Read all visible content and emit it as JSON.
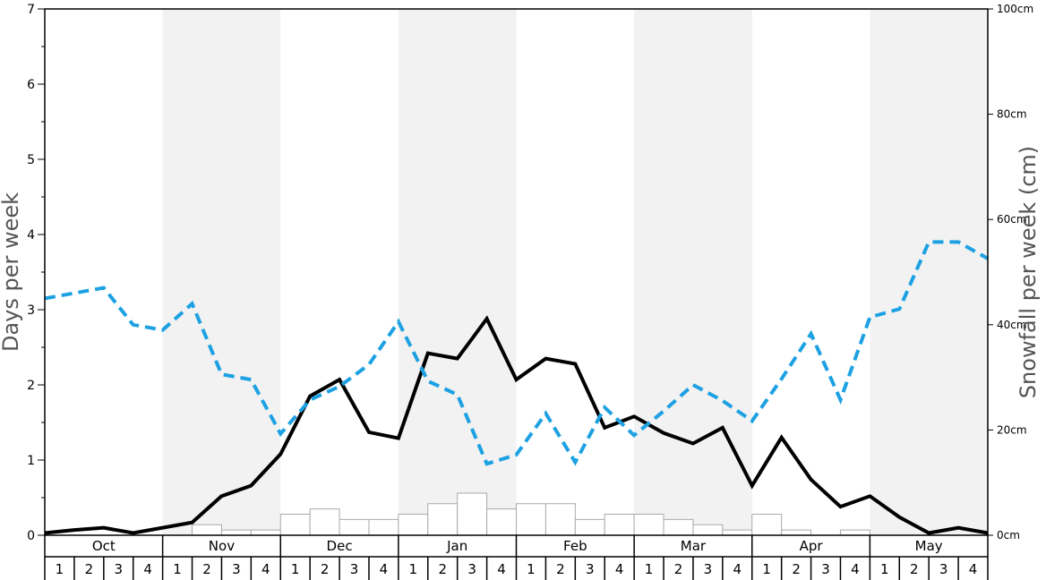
{
  "chart_data": {
    "type": "bar+line",
    "left_axis": {
      "label": "Days per week",
      "ylim": [
        0,
        7
      ],
      "ticks": [
        "0",
        "1",
        "2",
        "3",
        "4",
        "5",
        "6",
        "7"
      ]
    },
    "right_axis": {
      "label": "Snowfall per week (cm)",
      "ylim": [
        0,
        100
      ],
      "ticks": [
        "0cm",
        "20cm",
        "40cm",
        "60cm",
        "80cm",
        "100cm"
      ]
    },
    "months": [
      "Oct",
      "Nov",
      "Dec",
      "Jan",
      "Feb",
      "Mar",
      "Apr",
      "May"
    ],
    "weeks": [
      "1",
      "2",
      "3",
      "4"
    ],
    "shaded_months": [
      "Nov",
      "Jan",
      "Mar",
      "May"
    ],
    "colors": {
      "shade": "#f2f2f2",
      "bar_fill": "#ffffff",
      "bar_stroke": "#aaaaaa",
      "solid_line": "#000000",
      "dashed_line": "#1da1e2"
    },
    "series": [
      {
        "kind": "bar",
        "axis": "right",
        "values": [
          0,
          0,
          0,
          0,
          0,
          2,
          1,
          1,
          4,
          5,
          3,
          3,
          4,
          6,
          8,
          5,
          6,
          6,
          3,
          4,
          4,
          3,
          2,
          1,
          4,
          1,
          0,
          1,
          0,
          0,
          0,
          0
        ]
      },
      {
        "kind": "line",
        "style": "solid",
        "axis": "left",
        "values": [
          0.03,
          0.07,
          0.1,
          0.03,
          0.1,
          0.17,
          0.52,
          0.66,
          1.08,
          1.85,
          2.07,
          1.37,
          1.29,
          2.42,
          2.35,
          2.88,
          2.07,
          2.35,
          2.28,
          1.43,
          1.58,
          1.36,
          1.22,
          1.43,
          0.66,
          1.3,
          0.74,
          0.38,
          0.52,
          0.24,
          0.03,
          0.1,
          0.03
        ]
      },
      {
        "kind": "line",
        "style": "dashed",
        "axis": "left",
        "values": [
          3.15,
          3.22,
          3.29,
          2.8,
          2.73,
          3.08,
          2.14,
          2.07,
          1.35,
          1.8,
          1.98,
          2.27,
          2.84,
          2.05,
          1.87,
          0.95,
          1.07,
          1.62,
          0.97,
          1.7,
          1.33,
          1.65,
          2.0,
          1.79,
          1.52,
          2.08,
          2.68,
          1.8,
          2.9,
          3.01,
          3.9,
          3.9,
          3.68
        ]
      }
    ]
  }
}
